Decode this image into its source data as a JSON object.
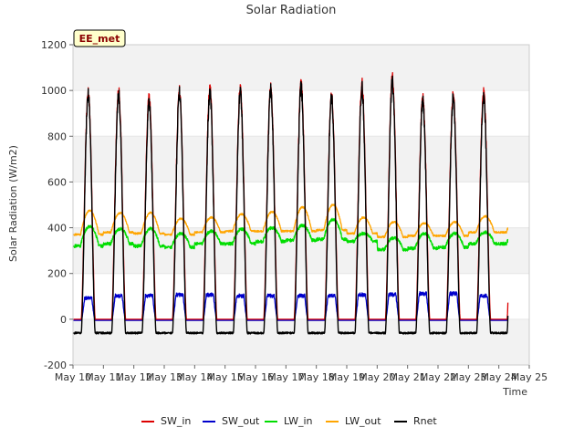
{
  "chart_data": {
    "type": "line",
    "title": "Solar Radiation",
    "xlabel": "Time",
    "ylabel": "Solar Radiation (W/m2)",
    "badge": "EE_met",
    "ylim": [
      -200,
      1200
    ],
    "yticks": [
      -200,
      0,
      200,
      400,
      600,
      800,
      1000,
      1200
    ],
    "xlim": [
      10,
      25
    ],
    "xticks": [
      10,
      11,
      12,
      13,
      14,
      15,
      16,
      17,
      18,
      19,
      20,
      21,
      22,
      23,
      24,
      25
    ],
    "xtick_labels": [
      "May 10",
      "May 11",
      "May 12",
      "May 13",
      "May 14",
      "May 15",
      "May 16",
      "May 17",
      "May 18",
      "May 19",
      "May 20",
      "May 21",
      "May 22",
      "May 23",
      "May 24",
      "May 25"
    ],
    "grid": "horizontal bands",
    "legend_position": "bottom",
    "series": [
      {
        "name": "SW_in",
        "color": "#dd0000",
        "daily_peak": [
          995,
          1005,
          975,
          1005,
          1020,
          1015,
          1015,
          1030,
          980,
          1035,
          1060,
          975,
          985,
          1005
        ]
      },
      {
        "name": "SW_out",
        "color": "#0000cc",
        "daily_peak": [
          95,
          105,
          105,
          110,
          110,
          105,
          105,
          105,
          105,
          110,
          110,
          115,
          115,
          105
        ],
        "night_value": -5
      },
      {
        "name": "LW_in",
        "color": "#00dd00",
        "daily_peak": [
          405,
          395,
          395,
          375,
          385,
          395,
          400,
          410,
          435,
          375,
          355,
          375,
          375,
          380
        ],
        "daily_min": [
          320,
          330,
          320,
          315,
          330,
          330,
          340,
          345,
          350,
          340,
          305,
          310,
          315,
          330
        ]
      },
      {
        "name": "LW_out",
        "color": "#ffa500",
        "daily_peak": [
          475,
          465,
          465,
          440,
          445,
          460,
          470,
          490,
          500,
          445,
          425,
          420,
          425,
          450
        ],
        "daily_min": [
          370,
          380,
          375,
          370,
          380,
          385,
          385,
          385,
          390,
          375,
          360,
          365,
          365,
          380
        ]
      },
      {
        "name": "Rnet",
        "color": "#000000",
        "daily_peak": [
          990,
          995,
          955,
          1000,
          1005,
          1005,
          1010,
          1020,
          975,
          1020,
          1045,
          965,
          975,
          985
        ],
        "night_value": -60
      }
    ]
  }
}
